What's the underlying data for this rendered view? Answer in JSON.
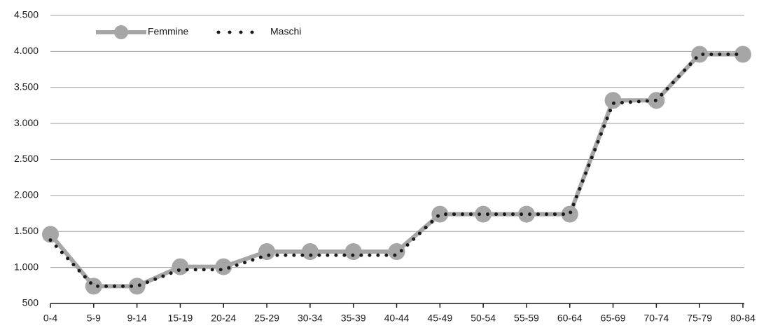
{
  "chart_data": {
    "type": "line",
    "categories": [
      "0-4",
      "5-9",
      "9-14",
      "15-19",
      "20-24",
      "25-29",
      "30-34",
      "35-39",
      "40-44",
      "45-49",
      "50-54",
      "55-59",
      "60-64",
      "65-69",
      "70-74",
      "75-79",
      "80-84"
    ],
    "series": [
      {
        "name": "Femmine",
        "color": "#a6a6a6",
        "values": [
          1460,
          740,
          740,
          1010,
          1010,
          1220,
          1220,
          1220,
          1220,
          1740,
          1740,
          1740,
          1740,
          3320,
          3320,
          3960,
          3960
        ]
      },
      {
        "name": "Maschi",
        "color": "#1a1a1a",
        "values": [
          1380,
          740,
          740,
          970,
          970,
          1170,
          1170,
          1170,
          1170,
          1740,
          1740,
          1740,
          1740,
          3280,
          3320,
          3960,
          3960
        ]
      }
    ],
    "ylim": [
      500,
      4500
    ],
    "yticks": [
      500,
      {
        "value": 1000,
        "label": "1.000"
      },
      {
        "value": 1500,
        "label": "1.500"
      },
      {
        "value": 2000,
        "label": "2.000"
      },
      {
        "value": 2500,
        "label": "2.500"
      },
      {
        "value": 3000,
        "label": "3.000"
      },
      {
        "value": 3500,
        "label": "3.500"
      },
      {
        "value": 4000,
        "label": "4.000"
      },
      {
        "value": 4500,
        "label": "4.500"
      }
    ],
    "grid": true,
    "legend": "upper left"
  }
}
